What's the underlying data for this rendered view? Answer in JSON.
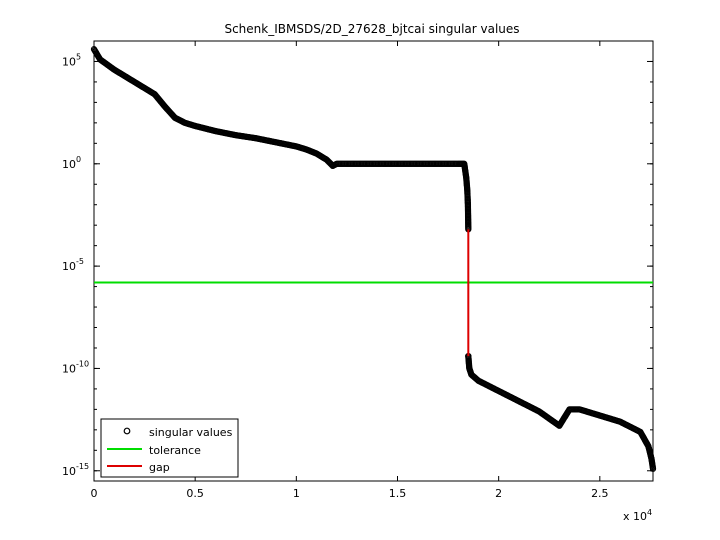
{
  "chart_data": {
    "type": "scatter",
    "title": "Schenk_IBMSDS/2D_27628_bjtcai singular values",
    "xlabel": "",
    "ylabel": "",
    "x_multiplier_label": "x 10",
    "x_multiplier_exp": "4",
    "xlim": [
      0,
      27628
    ],
    "ylim_log10": [
      -15.5,
      6
    ],
    "yscale": "log",
    "grid": false,
    "legend_position": "bottom-left",
    "x_ticks": [
      {
        "value": 0,
        "label": "0"
      },
      {
        "value": 5000,
        "label": "0.5"
      },
      {
        "value": 10000,
        "label": "1"
      },
      {
        "value": 15000,
        "label": "1.5"
      },
      {
        "value": 20000,
        "label": "2"
      },
      {
        "value": 25000,
        "label": "2.5"
      }
    ],
    "y_ticks": [
      {
        "log10": 5,
        "base": "10",
        "exp": "5"
      },
      {
        "log10": 0,
        "base": "10",
        "exp": "0"
      },
      {
        "log10": -5,
        "base": "10",
        "exp": "-5"
      },
      {
        "log10": -10,
        "base": "10",
        "exp": "-10"
      },
      {
        "log10": -15,
        "base": "10",
        "exp": "-15"
      }
    ],
    "series": [
      {
        "name": "singular values",
        "marker": "circle",
        "color": "#000000",
        "x": [
          0,
          300,
          1000,
          2000,
          3000,
          3500,
          4000,
          4500,
          5000,
          6000,
          7000,
          8000,
          9000,
          10000,
          10500,
          11000,
          11500,
          11800,
          12000,
          13000,
          14000,
          15000,
          16000,
          17000,
          18000,
          18300,
          18400,
          18450,
          18480,
          18500,
          18500,
          18550,
          18650,
          19000,
          20000,
          21000,
          22000,
          23000,
          23500,
          24000,
          25000,
          26000,
          27000,
          27400,
          27550,
          27628
        ],
        "y_log10": [
          5.6,
          5.1,
          4.6,
          4.0,
          3.4,
          2.8,
          2.25,
          2.0,
          1.85,
          1.6,
          1.4,
          1.25,
          1.05,
          0.85,
          0.7,
          0.5,
          0.2,
          -0.1,
          0.0,
          0.0,
          0.0,
          0.0,
          0.0,
          0.0,
          0.0,
          0.0,
          -0.7,
          -1.3,
          -2.0,
          -3.2,
          -9.4,
          -10.0,
          -10.3,
          -10.6,
          -11.1,
          -11.6,
          -12.1,
          -12.8,
          -12.0,
          -12.0,
          -12.3,
          -12.6,
          -13.1,
          -13.8,
          -14.4,
          -14.9
        ]
      },
      {
        "name": "tolerance",
        "type": "line",
        "color": "#00dd00",
        "y_log10": -5.8
      },
      {
        "name": "gap",
        "type": "line",
        "color": "#dd0000",
        "x": [
          18500,
          18500
        ],
        "y_log10": [
          -3.2,
          -9.4
        ]
      }
    ]
  }
}
